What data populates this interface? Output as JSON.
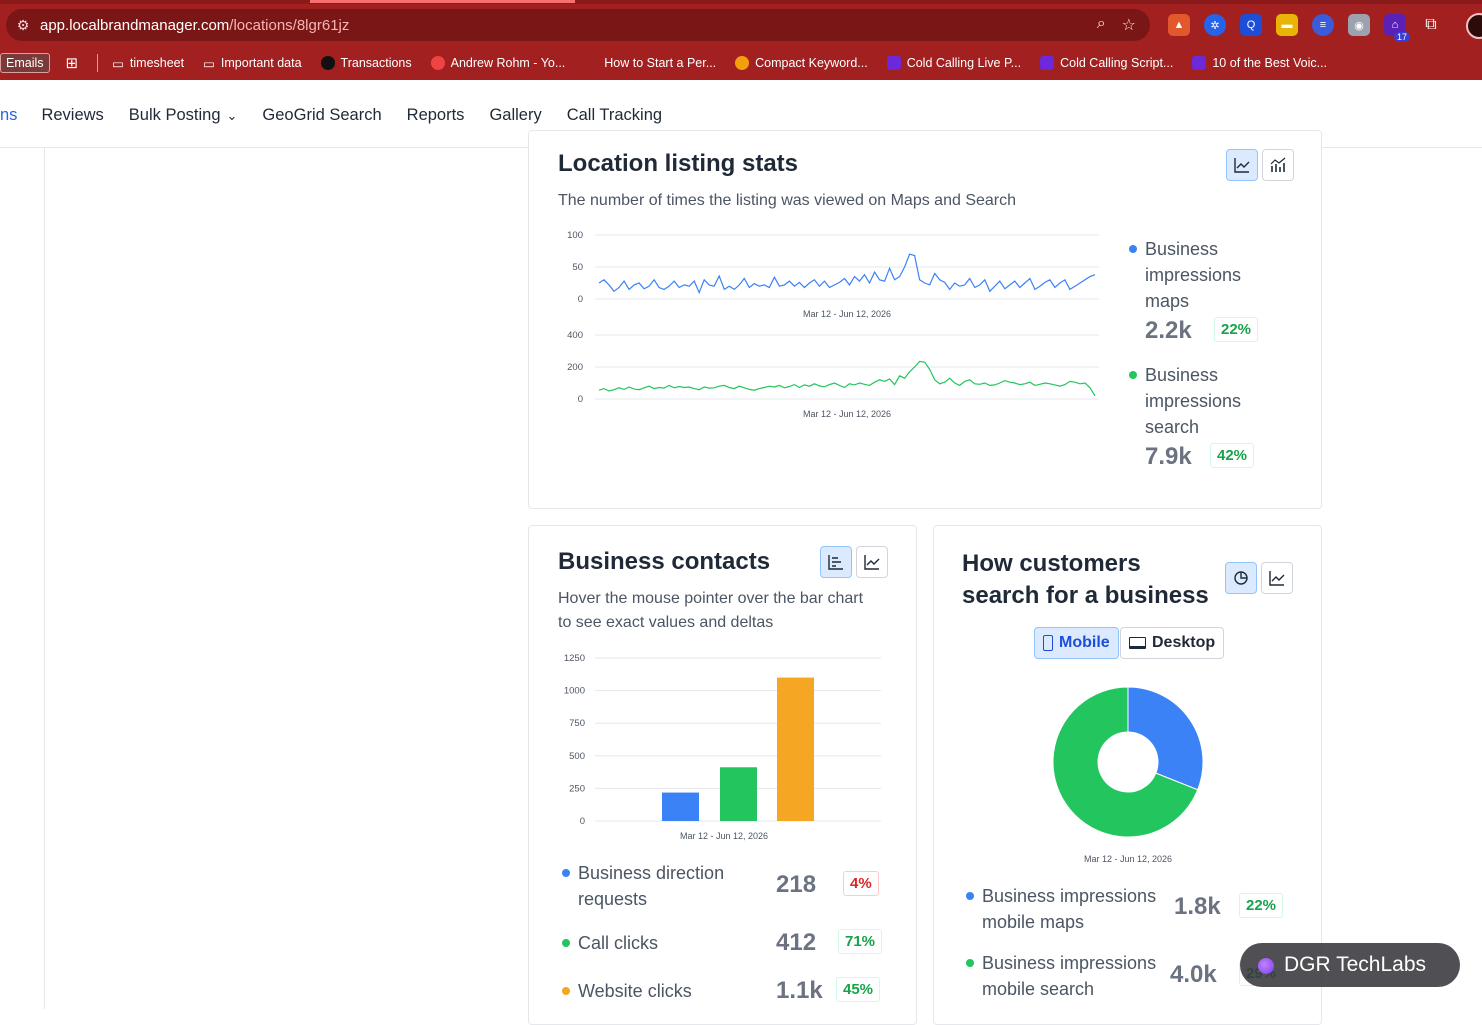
{
  "browser": {
    "url_host": "app.localbrandmanager.com",
    "url_path": "/locations/8lgr61jz",
    "extension_badge": "17",
    "bookmarks": [
      {
        "label": "Emails",
        "icon": "none"
      },
      {
        "label": "",
        "icon": "apps-grid-icon"
      },
      {
        "label": "timesheet",
        "icon": "folder-icon"
      },
      {
        "label": "Important data",
        "icon": "folder-icon"
      },
      {
        "label": "Transactions",
        "icon": "upwork-icon"
      },
      {
        "label": "Andrew Rohm - Yo...",
        "icon": "youtube-icon"
      },
      {
        "label": "How to Start a Per...",
        "icon": "none"
      },
      {
        "label": "Compact Keyword...",
        "icon": "smiley-icon"
      },
      {
        "label": "Cold Calling Live P...",
        "icon": "app-icon"
      },
      {
        "label": "Cold Calling Script...",
        "icon": "app-icon"
      },
      {
        "label": "10 of the Best Voic...",
        "icon": "app-icon"
      }
    ]
  },
  "nav": {
    "items": [
      "ns",
      "Reviews",
      "Bulk Posting",
      "GeoGrid Search",
      "Reports",
      "Gallery",
      "Call Tracking"
    ]
  },
  "listing_stats": {
    "title": "Location listing stats",
    "subtitle": "The number of times the listing was viewed on Maps and Search",
    "series": [
      {
        "name": "Business impressions maps",
        "name_lines": [
          "Business",
          "impressions",
          "maps"
        ],
        "value": "2.2k",
        "delta": "22%",
        "color": "#3b82f6"
      },
      {
        "name": "Business impressions search",
        "name_lines": [
          "Business",
          "impressions",
          "search"
        ],
        "value": "7.9k",
        "delta": "42%",
        "color": "#22c55e"
      }
    ]
  },
  "business_contacts": {
    "title": "Business contacts",
    "subtitle_lines": [
      "Hover the mouse pointer over the bar chart",
      "to see exact values and deltas"
    ],
    "items": [
      {
        "label_lines": [
          "Business direction",
          "requests"
        ],
        "value": "218",
        "delta": "4%",
        "negative": true,
        "color": "#3b82f6"
      },
      {
        "label_lines": [
          "Call clicks"
        ],
        "value": "412",
        "delta": "71%",
        "negative": false,
        "color": "#22c55e"
      },
      {
        "label_lines": [
          "Website clicks"
        ],
        "value": "1.1k",
        "delta": "45%",
        "negative": false,
        "color": "#f5a623"
      }
    ]
  },
  "how_customers": {
    "title_lines": [
      "How customers",
      "search for a business"
    ],
    "toggle": {
      "mobile": "Mobile",
      "desktop": "Desktop",
      "active": "mobile"
    },
    "items": [
      {
        "label_lines": [
          "Business impressions",
          "mobile maps"
        ],
        "value": "1.8k",
        "delta": "22%",
        "color": "#3b82f6"
      },
      {
        "label_lines": [
          "Business impressions",
          "mobile search"
        ],
        "value": "4.0k",
        "delta": "29%",
        "color": "#22c55e"
      }
    ]
  },
  "chart_data": [
    {
      "type": "line",
      "chart": "maps-impressions",
      "xlabel": "Mar 12 - Jun 12, 2026",
      "ylim": [
        0,
        100
      ],
      "yticks": [
        0,
        50,
        100
      ],
      "color": "#3b82f6",
      "values": [
        25,
        30,
        22,
        12,
        18,
        28,
        15,
        22,
        25,
        16,
        20,
        30,
        18,
        15,
        20,
        28,
        18,
        22,
        20,
        28,
        10,
        30,
        22,
        20,
        36,
        15,
        20,
        15,
        22,
        32,
        18,
        24,
        20,
        22,
        18,
        34,
        20,
        22,
        28,
        20,
        26,
        18,
        25,
        30,
        20,
        28,
        18,
        22,
        26,
        32,
        22,
        35,
        28,
        38,
        25,
        42,
        30,
        28,
        48,
        30,
        35,
        50,
        70,
        68,
        30,
        25,
        22,
        40,
        30,
        26,
        15,
        25,
        20,
        22,
        32,
        18,
        22,
        30,
        12,
        20,
        28,
        16,
        22,
        28,
        18,
        25,
        32,
        15,
        20,
        26,
        30,
        18,
        25,
        30,
        15,
        20,
        25,
        30,
        35,
        38
      ]
    },
    {
      "type": "line",
      "chart": "search-impressions",
      "xlabel": "Mar 12 - Jun 12, 2026",
      "ylim": [
        0,
        400
      ],
      "yticks": [
        0,
        200,
        400
      ],
      "color": "#22c55e",
      "values": [
        55,
        65,
        50,
        58,
        70,
        60,
        75,
        62,
        58,
        70,
        80,
        65,
        72,
        68,
        85,
        70,
        78,
        72,
        75,
        65,
        58,
        75,
        68,
        70,
        80,
        85,
        72,
        65,
        80,
        70,
        60,
        55,
        65,
        72,
        80,
        75,
        85,
        70,
        78,
        90,
        72,
        88,
        80,
        95,
        82,
        76,
        90,
        100,
        85,
        72,
        95,
        88,
        100,
        92,
        85,
        105,
        120,
        110,
        125,
        90,
        145,
        130,
        170,
        200,
        235,
        230,
        185,
        120,
        95,
        105,
        130,
        100,
        85,
        110,
        120,
        95,
        92,
        100,
        85,
        88,
        100,
        115,
        105,
        100,
        90,
        95,
        105,
        85,
        92,
        100,
        95,
        88,
        80,
        90,
        110,
        105,
        95,
        100,
        70,
        20
      ]
    },
    {
      "type": "bar",
      "chart": "business-contacts",
      "xlabel": "Mar 12 - Jun 12, 2026",
      "ylim": [
        0,
        1250
      ],
      "yticks": [
        0,
        250,
        500,
        750,
        1000,
        1250
      ],
      "categories": [
        "Business direction requests",
        "Call clicks",
        "Website clicks"
      ],
      "values": [
        218,
        412,
        1100
      ],
      "colors": [
        "#3b82f6",
        "#22c55e",
        "#f5a623"
      ]
    },
    {
      "type": "pie",
      "chart": "mobile-split",
      "xlabel": "Mar 12 - Jun 12, 2026",
      "categories": [
        "Business impressions mobile maps",
        "Business impressions mobile search"
      ],
      "values": [
        1800,
        4000
      ],
      "colors": [
        "#3b82f6",
        "#22c55e"
      ]
    }
  ],
  "brand": {
    "label": "DGR TechLabs"
  }
}
